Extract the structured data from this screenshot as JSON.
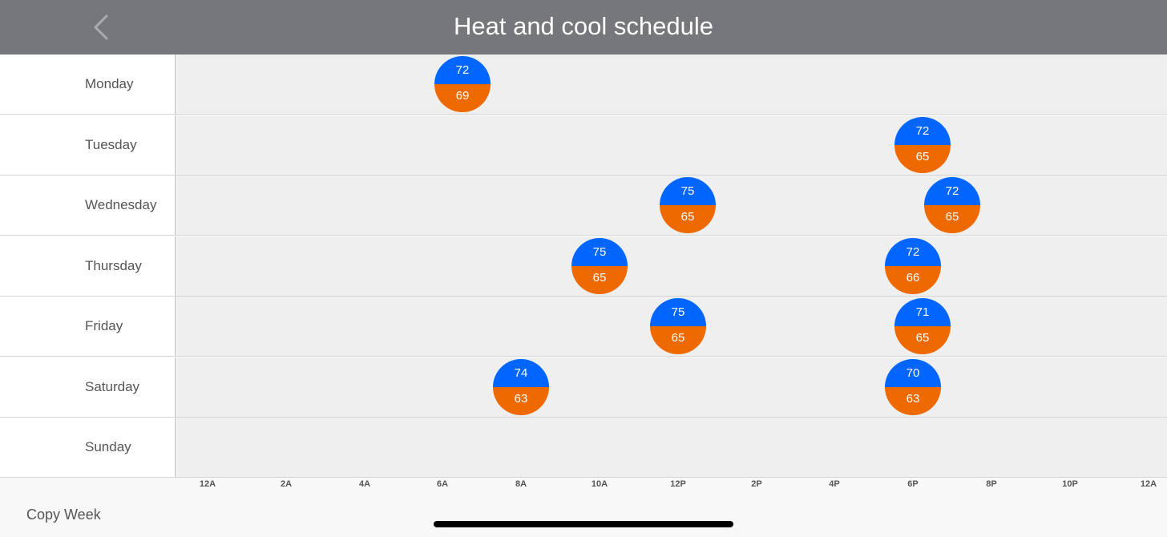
{
  "header": {
    "title": "Heat and cool schedule"
  },
  "days": [
    {
      "label": "Monday",
      "setpoints": [
        {
          "cool": "72",
          "heat": "69",
          "time_hours": 6.5
        }
      ]
    },
    {
      "label": "Tuesday",
      "setpoints": [
        {
          "cool": "72",
          "heat": "65",
          "time_hours": 18.25
        }
      ]
    },
    {
      "label": "Wednesday",
      "setpoints": [
        {
          "cool": "75",
          "heat": "65",
          "time_hours": 12.25
        },
        {
          "cool": "72",
          "heat": "65",
          "time_hours": 19
        }
      ]
    },
    {
      "label": "Thursday",
      "setpoints": [
        {
          "cool": "75",
          "heat": "65",
          "time_hours": 10
        },
        {
          "cool": "72",
          "heat": "66",
          "time_hours": 18
        }
      ]
    },
    {
      "label": "Friday",
      "setpoints": [
        {
          "cool": "75",
          "heat": "65",
          "time_hours": 12
        },
        {
          "cool": "71",
          "heat": "65",
          "time_hours": 18.25
        }
      ]
    },
    {
      "label": "Saturday",
      "setpoints": [
        {
          "cool": "74",
          "heat": "63",
          "time_hours": 8
        },
        {
          "cool": "70",
          "heat": "63",
          "time_hours": 18
        }
      ]
    },
    {
      "label": "Sunday",
      "setpoints": []
    }
  ],
  "axis_ticks": [
    "12A",
    "2A",
    "4A",
    "6A",
    "8A",
    "10A",
    "12P",
    "2P",
    "4P",
    "6P",
    "8P",
    "10P",
    "12A"
  ],
  "footer": {
    "copy_week_label": "Copy Week"
  },
  "colors": {
    "cool": "#0066ff",
    "heat": "#ee6a00",
    "header": "#76777b"
  }
}
